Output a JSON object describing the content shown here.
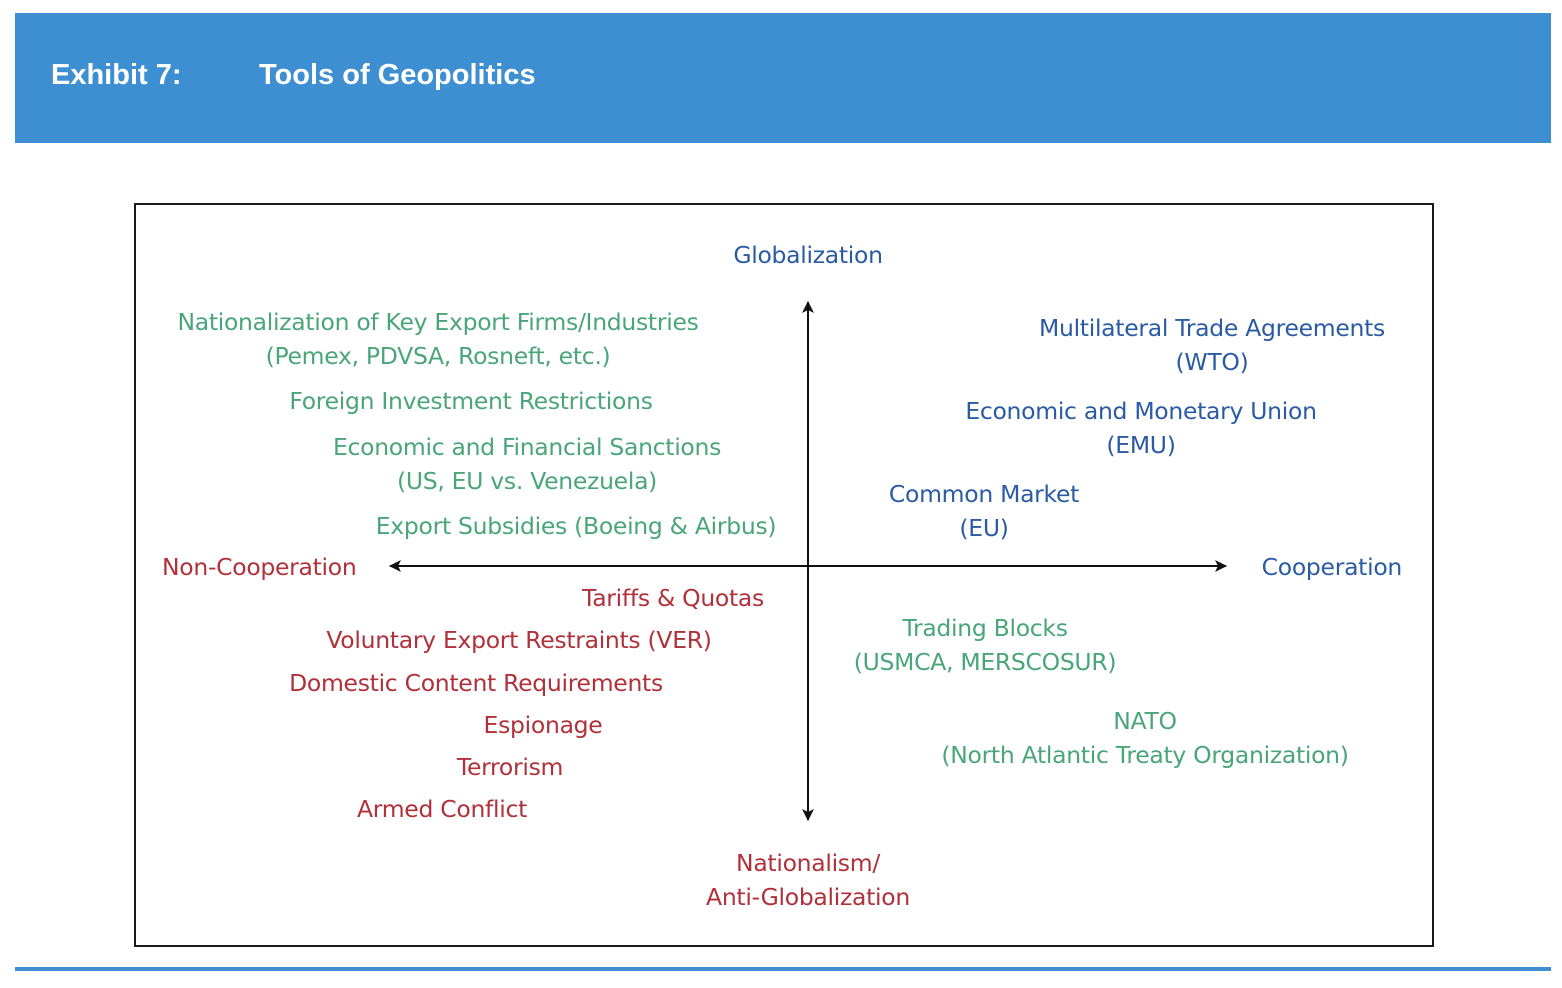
{
  "header": {
    "exhibit": "Exhibit 7:",
    "title": "Tools of Geopolitics"
  },
  "colors": {
    "header_blue": "#3d8fd1",
    "blue_text": "#2a5ba4",
    "green_text": "#4aa57c",
    "red_text": "#b03139",
    "axis": "#111111"
  },
  "axes": {
    "top": "Globalization",
    "bottom_line1": "Nationalism/",
    "bottom_line2": "Anti-Globalization",
    "left": "Non-Cooperation",
    "right": "Cooperation"
  },
  "quadrants": {
    "top_left": [
      {
        "line1": "Nationalization of Key Export Firms/Industries",
        "line2": "(Pemex, PDVSA, Rosneft, etc.)"
      },
      {
        "line1": "Foreign Investment Restrictions"
      },
      {
        "line1": "Economic and Financial Sanctions",
        "line2": "(US, EU vs. Venezuela)"
      },
      {
        "line1": "Export Subsidies (Boeing & Airbus)"
      }
    ],
    "top_right": [
      {
        "line1": "Multilateral Trade Agreements",
        "line2": "(WTO)"
      },
      {
        "line1": "Economic and Monetary Union",
        "line2": "(EMU)"
      },
      {
        "line1": "Common Market",
        "line2": "(EU)"
      }
    ],
    "bottom_left": [
      {
        "line1": "Tariffs & Quotas"
      },
      {
        "line1": "Voluntary Export Restraints (VER)"
      },
      {
        "line1": "Domestic Content Requirements"
      },
      {
        "line1": "Espionage"
      },
      {
        "line1": "Terrorism"
      },
      {
        "line1": "Armed Conflict"
      }
    ],
    "bottom_right": [
      {
        "line1": "Trading Blocks",
        "line2": "(USMCA, MERSCOSUR)"
      },
      {
        "line1": "NATO",
        "line2": "(North Atlantic Treaty Organization)"
      }
    ]
  }
}
